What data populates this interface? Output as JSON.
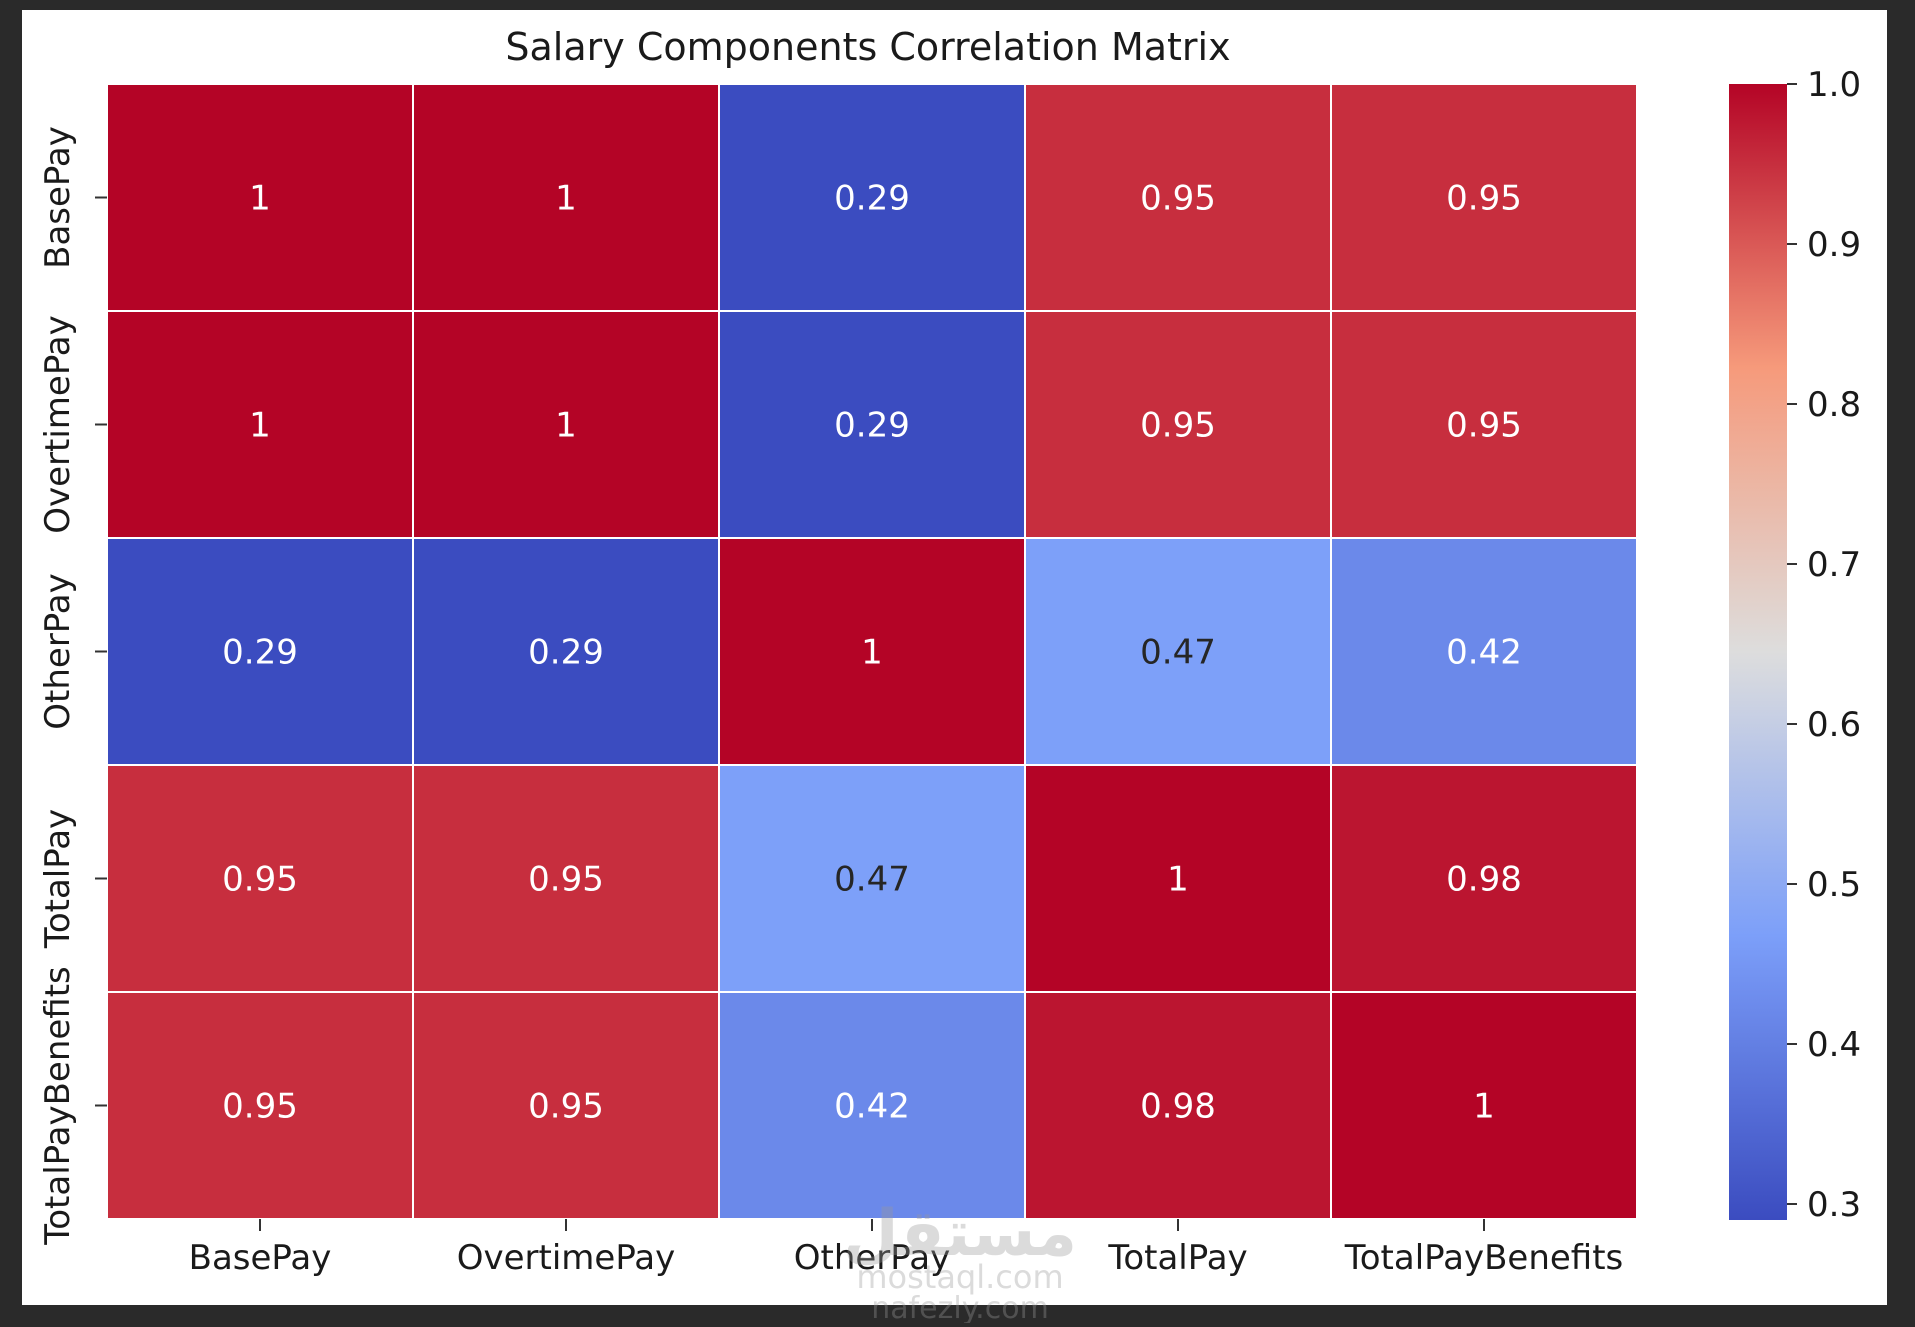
{
  "chart_data": {
    "type": "heatmap",
    "title": "Salary Components Correlation Matrix",
    "x_categories": [
      "BasePay",
      "OvertimePay",
      "OtherPay",
      "TotalPay",
      "TotalPayBenefits"
    ],
    "y_categories": [
      "BasePay",
      "OvertimePay",
      "OtherPay",
      "TotalPay",
      "TotalPayBenefits"
    ],
    "values": [
      [
        1,
        1,
        0.29,
        0.95,
        0.95
      ],
      [
        1,
        1,
        0.29,
        0.95,
        0.95
      ],
      [
        0.29,
        0.29,
        1,
        0.47,
        0.42
      ],
      [
        0.95,
        0.95,
        0.47,
        1,
        0.98
      ],
      [
        0.95,
        0.95,
        0.42,
        0.98,
        1
      ]
    ],
    "cell_labels": [
      [
        "1",
        "1",
        "0.29",
        "0.95",
        "0.95"
      ],
      [
        "1",
        "1",
        "0.29",
        "0.95",
        "0.95"
      ],
      [
        "0.29",
        "0.29",
        "1",
        "0.47",
        "0.42"
      ],
      [
        "0.95",
        "0.95",
        "0.47",
        "1",
        "0.98"
      ],
      [
        "0.95",
        "0.95",
        "0.42",
        "0.98",
        "1"
      ]
    ],
    "colormap": "coolwarm",
    "colorbar": {
      "range": [
        0.29,
        1.0
      ],
      "ticks": [
        1.0,
        0.9,
        0.8,
        0.7,
        0.6,
        0.5,
        0.4,
        0.3
      ],
      "tick_labels": [
        "1.0",
        "0.9",
        "0.8",
        "0.7",
        "0.6",
        "0.5",
        "0.4",
        "0.3"
      ]
    },
    "colors": {
      "frame_background": "#2a2a2a",
      "figure_background": "#ffffff",
      "light_text": "#ffffff",
      "dark_text": "#262626",
      "cell_border": "#ffffff"
    }
  },
  "watermark": {
    "lines": [
      "مستقل",
      "mostaql.com",
      "nafezly.com"
    ]
  }
}
